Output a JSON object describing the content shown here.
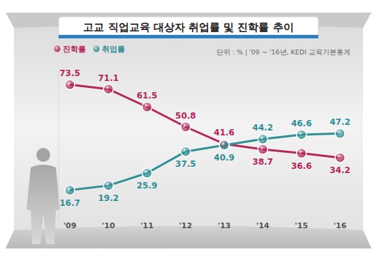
{
  "chart_data": {
    "type": "line",
    "title": "고교 직업교육 대상자 취업률 및 진학률 추이",
    "subtitle": "단위 : %  |  '09 ~ '16년, KEDI 교육기본통계",
    "categories": [
      "'09",
      "'10",
      "'11",
      "'12",
      "'13",
      "'14",
      "'15",
      "'16"
    ],
    "series": [
      {
        "name": "진학률",
        "color": "#b3265a",
        "values": [
          73.5,
          71.1,
          61.5,
          50.8,
          41.6,
          38.7,
          36.6,
          34.2
        ]
      },
      {
        "name": "취업률",
        "color": "#2f8f94",
        "values": [
          16.7,
          19.2,
          25.9,
          37.5,
          40.9,
          44.2,
          46.6,
          47.2
        ]
      }
    ],
    "ylim": [
      0,
      80
    ],
    "tick_labels": "x",
    "data_labels": true,
    "legend": "top-left",
    "grid": false,
    "marker": "circle"
  }
}
